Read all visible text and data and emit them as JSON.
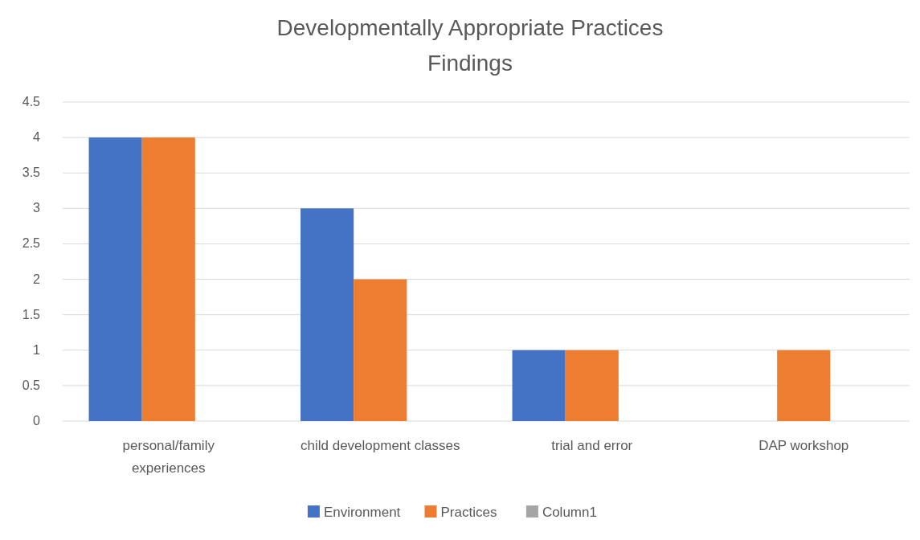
{
  "chart_data": {
    "type": "bar",
    "title": "Developmentally Appropriate Practices\nFindings",
    "categories": [
      "personal/family experiences",
      "child development classes",
      "trial and error",
      "DAP workshop"
    ],
    "series": [
      {
        "name": "Environment",
        "color": "#4472c4",
        "values": [
          4,
          3,
          1,
          null
        ]
      },
      {
        "name": "Practices",
        "color": "#ed7d31",
        "values": [
          4,
          2,
          1,
          1
        ]
      },
      {
        "name": "Column1",
        "color": "#a5a5a5",
        "values": [
          null,
          null,
          null,
          null
        ]
      }
    ],
    "ylim": [
      0,
      4.5
    ],
    "yticks": [
      0,
      0.5,
      1,
      1.5,
      2,
      2.5,
      3,
      3.5,
      4,
      4.5
    ],
    "grid": "y",
    "legend": "bottom"
  }
}
